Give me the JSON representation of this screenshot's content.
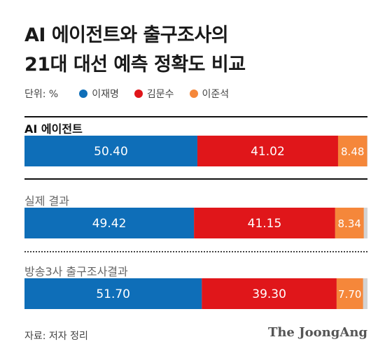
{
  "title": {
    "line1": "AI 에이전트와 출구조사의",
    "line2": "21대 대선 예측 정확도 비교"
  },
  "legend": {
    "unit": "단위: %",
    "items": [
      {
        "label": "이재명",
        "color": "#0e6eb8"
      },
      {
        "label": "김문수",
        "color": "#e0161a"
      },
      {
        "label": "이준석",
        "color": "#f5873a"
      }
    ]
  },
  "chart_data": {
    "type": "bar",
    "orientation": "horizontal-stacked",
    "categories": [
      "AI 에이전트",
      "실제 결과",
      "방송3사 출구조사결과"
    ],
    "series": [
      {
        "name": "이재명",
        "color": "#0e6eb8",
        "values": [
          50.4,
          49.42,
          51.7
        ]
      },
      {
        "name": "김문수",
        "color": "#e0161a",
        "values": [
          41.02,
          41.15,
          39.3
        ]
      },
      {
        "name": "이준석",
        "color": "#f5873a",
        "values": [
          8.48,
          8.34,
          7.7
        ]
      }
    ],
    "value_labels": [
      [
        "50.40",
        "41.02",
        "8.48"
      ],
      [
        "49.42",
        "41.15",
        "8.34"
      ],
      [
        "51.70",
        "39.30",
        "7.70"
      ]
    ],
    "remainder_color": "#d3d3d3",
    "xlim": [
      0,
      100
    ]
  },
  "source": "자료: 저자 정리",
  "brand": "The JoongAng"
}
